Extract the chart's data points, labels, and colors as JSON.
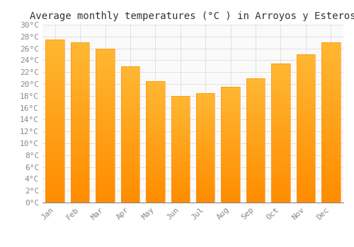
{
  "title": "Average monthly temperatures (°C ) in Arroyos y Esteros",
  "months": [
    "Jan",
    "Feb",
    "Mar",
    "Apr",
    "May",
    "Jun",
    "Jul",
    "Aug",
    "Sep",
    "Oct",
    "Nov",
    "Dec"
  ],
  "values": [
    27.5,
    27.0,
    26.0,
    23.0,
    20.5,
    18.0,
    18.5,
    19.5,
    21.0,
    23.5,
    25.0,
    27.0
  ],
  "bar_color_top": "#FFB733",
  "bar_color_bottom": "#FF8C00",
  "background_color": "#FFFFFF",
  "plot_bg_color": "#FAFAFA",
  "grid_color": "#DDDDDD",
  "ylim": [
    0,
    30
  ],
  "ytick_step": 2,
  "title_fontsize": 10,
  "tick_fontsize": 8,
  "tick_color": "#888888",
  "font_family": "monospace",
  "bar_width": 0.75
}
